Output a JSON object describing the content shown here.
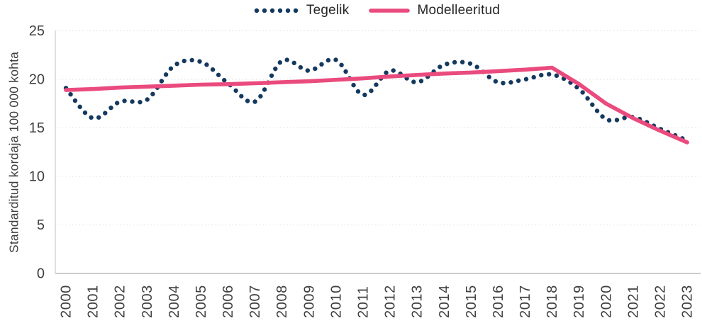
{
  "chart_data": {
    "type": "line",
    "title": "",
    "xlabel": "",
    "ylabel": "Standarditud kordaja 100 000 kohta",
    "ylim": [
      0,
      25
    ],
    "yticks": [
      0,
      5,
      10,
      15,
      20,
      25
    ],
    "grid": true,
    "legend_position": "top-center",
    "categories": [
      "2000",
      "2001",
      "2002",
      "2003",
      "2004",
      "2005",
      "2006",
      "2007",
      "2008",
      "2009",
      "2010",
      "2011",
      "2012",
      "2013",
      "2014",
      "2015",
      "2016",
      "2017",
      "2018",
      "2019",
      "2020",
      "2021",
      "2022",
      "2023"
    ],
    "series": [
      {
        "name": "Tegelik",
        "style": "dotted",
        "color": "#14395F",
        "values": [
          19.1,
          16.0,
          17.7,
          17.9,
          21.4,
          21.8,
          19.6,
          17.7,
          21.9,
          20.9,
          22.0,
          18.4,
          20.9,
          19.7,
          21.5,
          21.6,
          19.7,
          20.0,
          20.5,
          19.0,
          15.9,
          16.1,
          14.9,
          13.7
        ]
      },
      {
        "name": "Modelleeritud",
        "style": "solid",
        "color": "#EA4B7E",
        "values": [
          18.9,
          19.0,
          19.15,
          19.25,
          19.35,
          19.45,
          19.5,
          19.6,
          19.7,
          19.8,
          19.95,
          20.1,
          20.3,
          20.45,
          20.6,
          20.7,
          20.85,
          21.0,
          21.2,
          19.5,
          17.5,
          16.0,
          14.7,
          13.5
        ]
      }
    ]
  },
  "colors": {
    "grid": "#D5D5D5",
    "axis_left": "#D9D9D9",
    "axis_bottom": "#CBCBCB",
    "tick_text": "#3F3F3F",
    "legend_text": "#252525",
    "background": "#FFFFFF"
  }
}
